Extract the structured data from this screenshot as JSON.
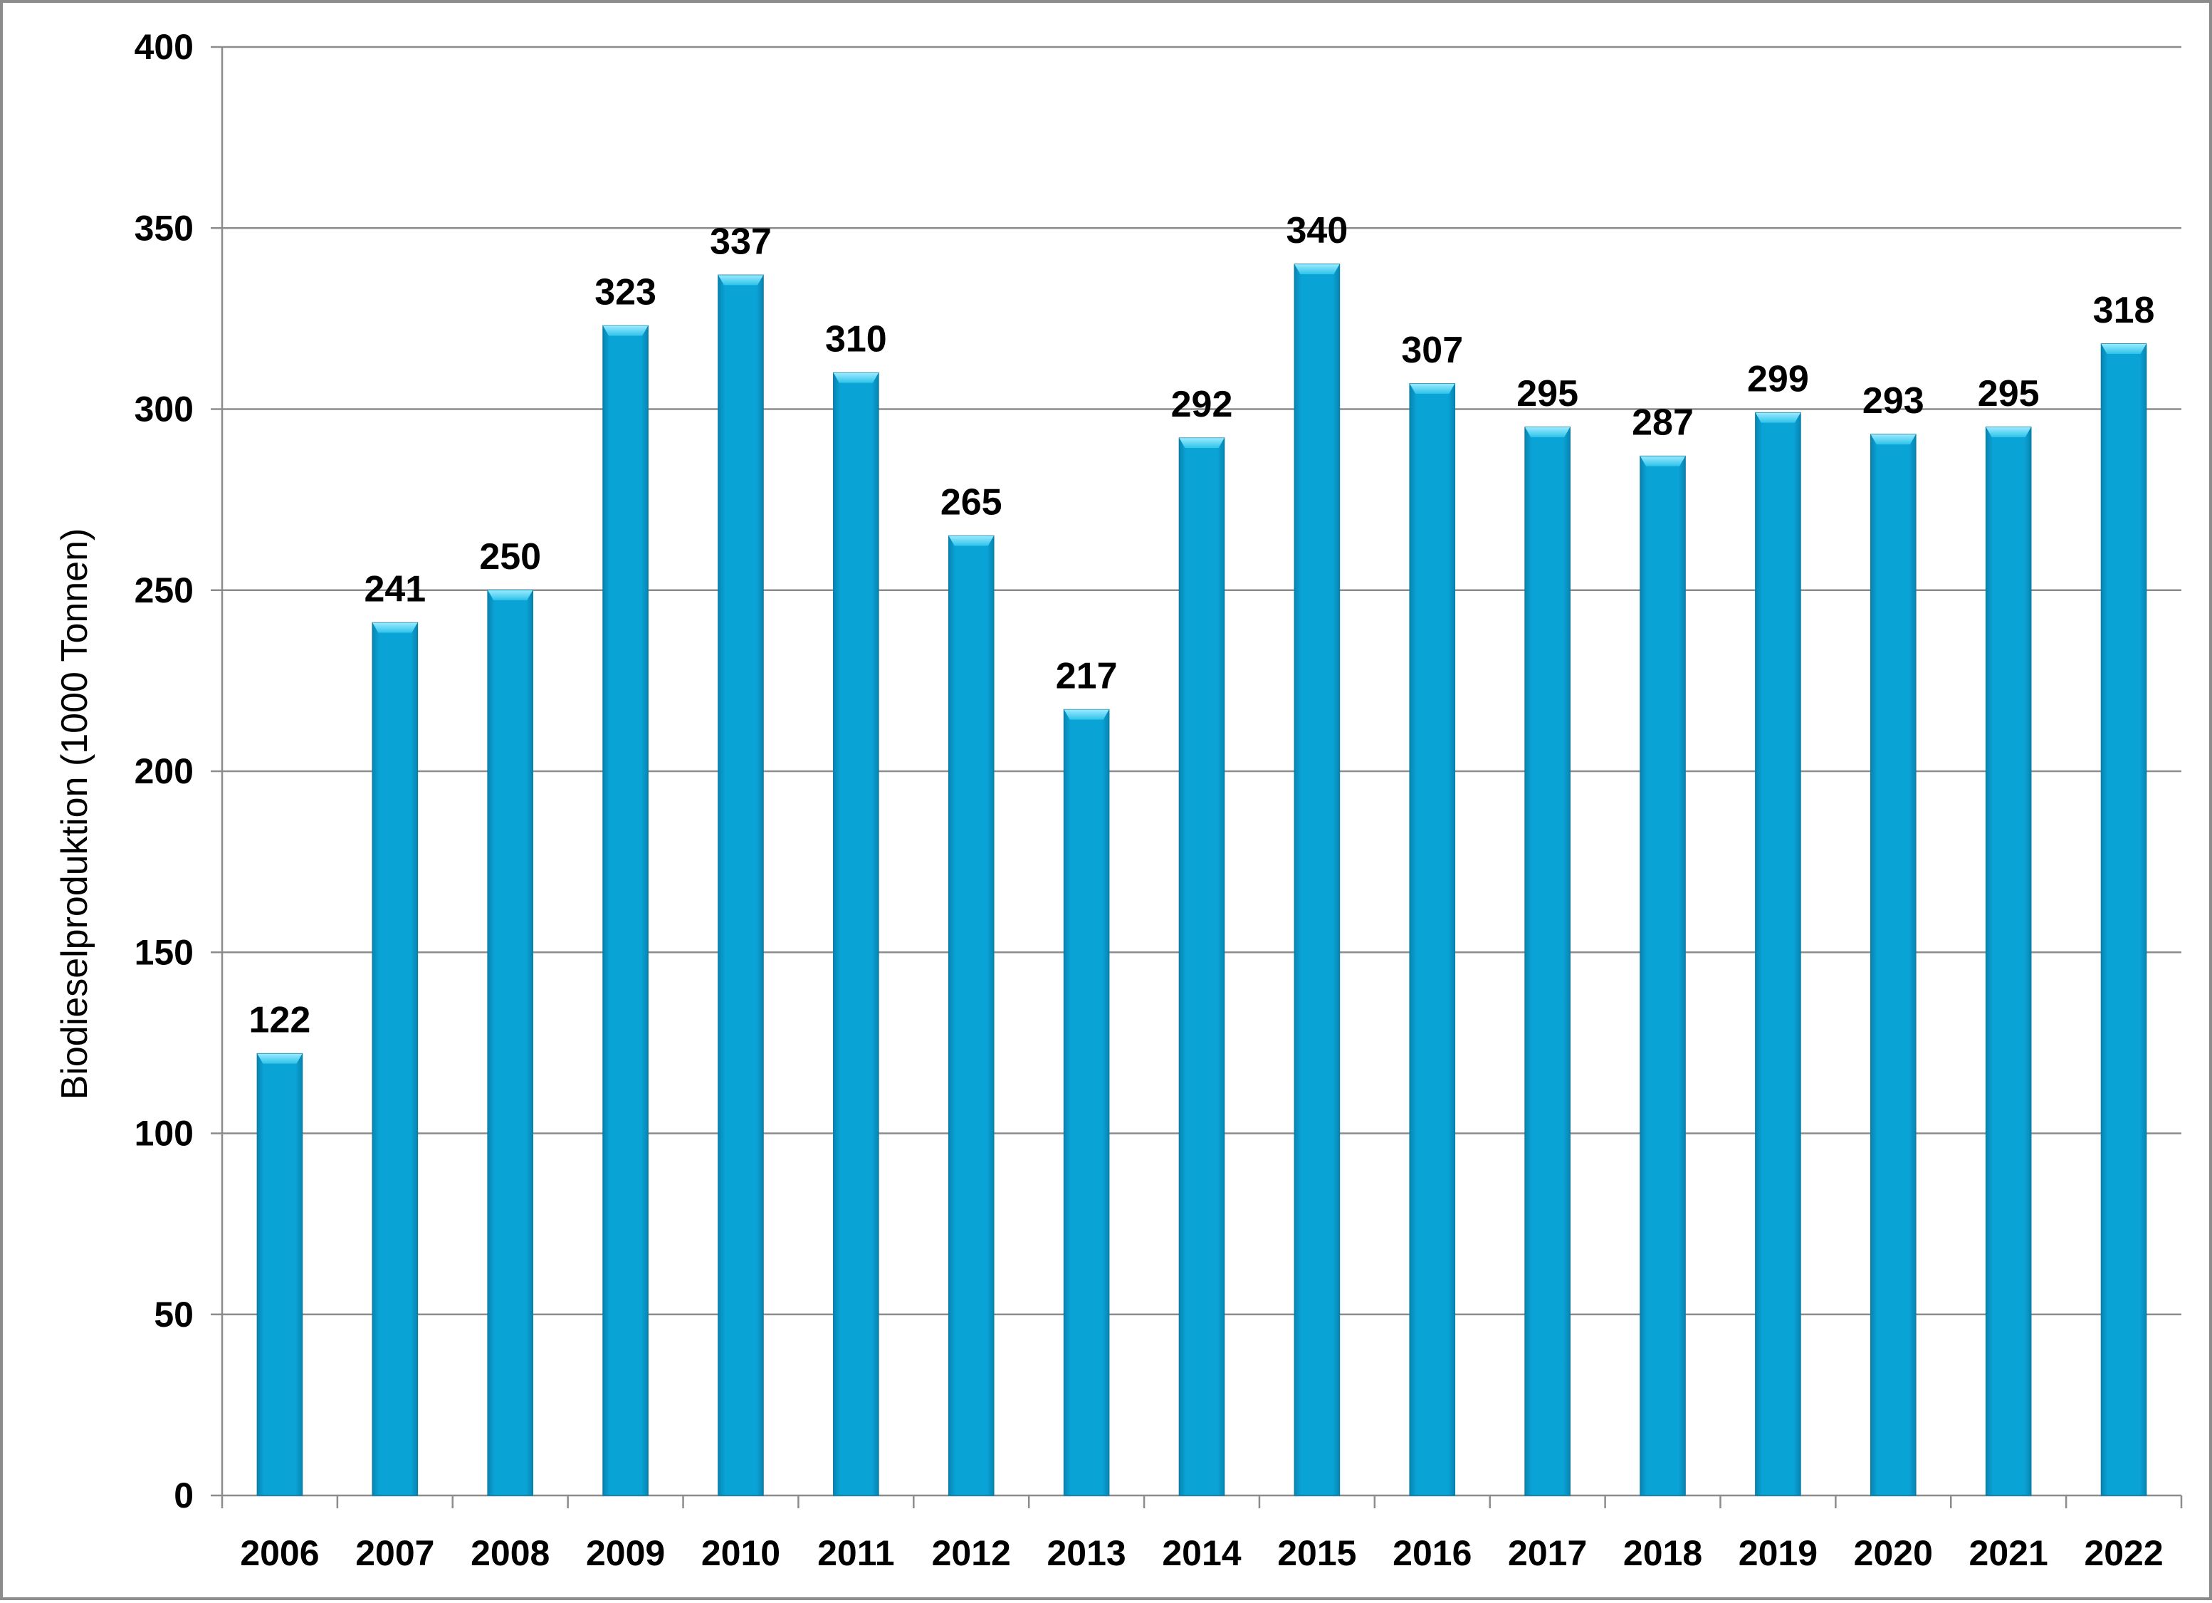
{
  "chart_data": {
    "type": "bar",
    "title": "",
    "xlabel": "",
    "ylabel": "Biodieselproduktion (1000 Tonnen)",
    "categories": [
      "2006",
      "2007",
      "2008",
      "2009",
      "2010",
      "2011",
      "2012",
      "2013",
      "2014",
      "2015",
      "2016",
      "2017",
      "2018",
      "2019",
      "2020",
      "2021",
      "2022"
    ],
    "values": [
      122,
      241,
      250,
      323,
      337,
      310,
      265,
      217,
      292,
      340,
      307,
      295,
      287,
      299,
      293,
      295,
      318
    ],
    "data_labels": [
      "122",
      "241",
      "250",
      "323",
      "337",
      "310",
      "265",
      "217",
      "292",
      "340",
      "307",
      "295",
      "287",
      "299",
      "293",
      "295",
      "318"
    ],
    "y_ticks": [
      "0",
      "50",
      "100",
      "150",
      "200",
      "250",
      "300",
      "350",
      "400"
    ],
    "ylim": [
      0,
      400
    ],
    "grid": true,
    "legend": "none",
    "colors": {
      "bar": "#0aa0d2",
      "bar_top": "#63d8f5",
      "bar_edge": "#0b7ea6",
      "grid": "#8c8c8c",
      "axis": "#8c8c8c"
    }
  }
}
